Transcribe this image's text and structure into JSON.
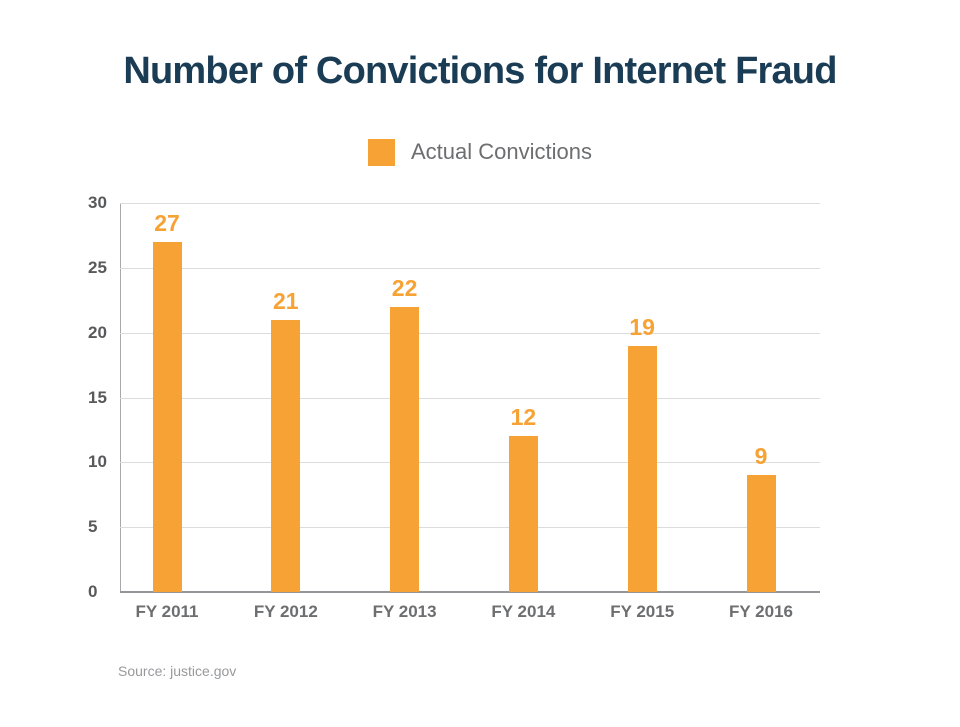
{
  "title": "Number of Convictions for Internet Fraud",
  "legend": {
    "label": "Actual Convictions",
    "swatch_color": "#F7A234"
  },
  "source": "Source: justice.gov",
  "colors": {
    "bar": "#F7A234",
    "title_text": "#1B3C55",
    "y_tick_text": "#58595B",
    "x_tick_text": "#6D6E70",
    "legend_text": "#6D6E70",
    "source_text": "#97999C",
    "gridline": "#DBDCDD",
    "axis_line": "#A7A9AC"
  },
  "chart_data": {
    "type": "bar",
    "title": "Number of Convictions for Internet Fraud",
    "series_name": "Actual Convictions",
    "categories": [
      "FY 2011",
      "FY 2012",
      "FY 2013",
      "FY 2014",
      "FY 2015",
      "FY 2016"
    ],
    "values": [
      27,
      21,
      22,
      12,
      19,
      9
    ],
    "xlabel": "",
    "ylabel": "",
    "ylim": [
      0,
      30
    ],
    "yticks": [
      0,
      5,
      10,
      15,
      20,
      25,
      30
    ],
    "grid": true,
    "data_labels": true,
    "legend_position": "top-center"
  }
}
